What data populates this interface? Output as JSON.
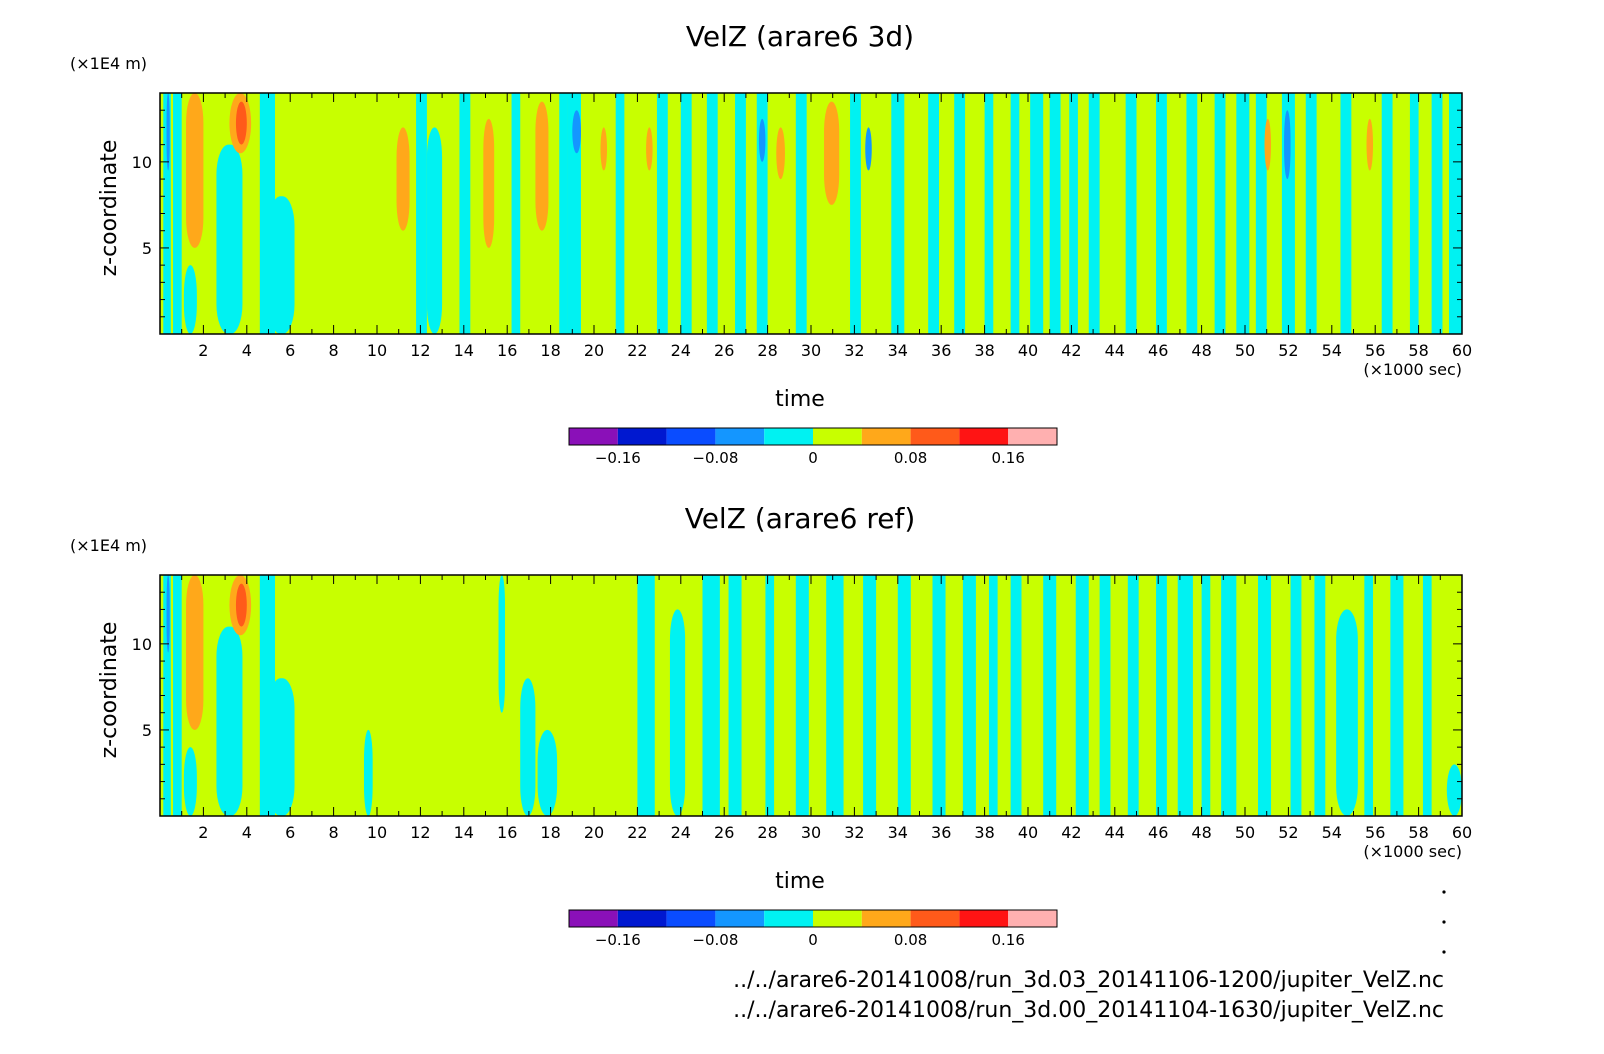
{
  "panels": [
    {
      "title": "VelZ (arare6 3d)",
      "xlabel": "time",
      "ylabel": "z-coordinate",
      "x_unit": "(×1000 sec)",
      "y_unit": "(×1E4 m)"
    },
    {
      "title": "VelZ (arare6 ref)",
      "xlabel": "time",
      "ylabel": "z-coordinate",
      "x_unit": "(×1000 sec)",
      "y_unit": "(×1E4 m)"
    }
  ],
  "colorbar": {
    "levels": [
      -0.2,
      -0.16,
      -0.12,
      -0.08,
      -0.04,
      0,
      0.04,
      0.08,
      0.12,
      0.16,
      0.2
    ],
    "colors": [
      "#8a10b8",
      "#0018d0",
      "#0a4cff",
      "#1496ff",
      "#00f2f2",
      "#c8ff00",
      "#ffa81a",
      "#ff5a1a",
      "#ff1414",
      "#ffb0b0"
    ],
    "tick_values": [
      -0.16,
      -0.08,
      0,
      0.08,
      0.16
    ],
    "tick_labels": [
      "−0.16",
      "−0.08",
      "0",
      "0.08",
      "0.16"
    ]
  },
  "file_paths": [
    "../../arare6-20141008/run_3d.03_20141106-1200/jupiter_VelZ.nc",
    "../../arare6-20141008/run_3d.00_20141104-1630/jupiter_VelZ.nc"
  ],
  "chart_data": [
    {
      "type": "heatmap",
      "title": "VelZ (arare6 3d)",
      "xlabel": "time",
      "ylabel": "z-coordinate",
      "x_unit": "(×1000 sec)",
      "y_unit": "(×1E4 m)",
      "xlim": [
        0,
        60
      ],
      "ylim": [
        0,
        14
      ],
      "xticks": [
        2,
        4,
        6,
        8,
        10,
        12,
        14,
        16,
        18,
        20,
        22,
        24,
        26,
        28,
        30,
        32,
        34,
        36,
        38,
        40,
        42,
        44,
        46,
        48,
        50,
        52,
        54,
        56,
        58,
        60
      ],
      "yticks": [
        5,
        10
      ],
      "background_level": 0,
      "bands": [
        {
          "x0": 0.15,
          "x1": 0.5,
          "level": -1
        },
        {
          "x0": 0.3,
          "x1": 0.45,
          "level": -2,
          "y0": 9.5,
          "y1": 14
        },
        {
          "x0": 0.6,
          "x1": 1.0,
          "level": -1
        },
        {
          "x0": 1.1,
          "x1": 1.7,
          "level": -1,
          "y0": 0,
          "y1": 4
        },
        {
          "x0": 1.2,
          "x1": 2.0,
          "level": 1,
          "y0": 5,
          "y1": 14
        },
        {
          "x0": 2.6,
          "x1": 3.8,
          "level": -1,
          "y0": 0,
          "y1": 11
        },
        {
          "x0": 3.2,
          "x1": 4.2,
          "level": 1,
          "y0": 10.5,
          "y1": 14
        },
        {
          "x0": 3.5,
          "x1": 4.0,
          "level": 2,
          "y0": 11,
          "y1": 13.5
        },
        {
          "x0": 4.6,
          "x1": 5.3,
          "level": -1
        },
        {
          "x0": 5.0,
          "x1": 6.2,
          "level": -1,
          "y0": 0,
          "y1": 8
        },
        {
          "x0": 10.9,
          "x1": 11.5,
          "level": 1,
          "y0": 6,
          "y1": 12
        },
        {
          "x0": 11.8,
          "x1": 12.3,
          "level": -1
        },
        {
          "x0": 12.3,
          "x1": 13.0,
          "level": -1,
          "y0": 0,
          "y1": 12
        },
        {
          "x0": 13.8,
          "x1": 14.3,
          "level": -1
        },
        {
          "x0": 14.9,
          "x1": 15.4,
          "level": 1,
          "y0": 5,
          "y1": 12.5
        },
        {
          "x0": 16.2,
          "x1": 16.6,
          "level": -1
        },
        {
          "x0": 17.3,
          "x1": 17.9,
          "level": 1,
          "y0": 6,
          "y1": 13.5
        },
        {
          "x0": 18.4,
          "x1": 18.8,
          "level": -1
        },
        {
          "x0": 18.8,
          "x1": 19.4,
          "level": -1
        },
        {
          "x0": 19.0,
          "x1": 19.4,
          "level": -2,
          "y0": 10.5,
          "y1": 13
        },
        {
          "x0": 20.3,
          "x1": 20.6,
          "level": 1,
          "y0": 9.5,
          "y1": 12
        },
        {
          "x0": 21.0,
          "x1": 21.4,
          "level": -1
        },
        {
          "x0": 22.4,
          "x1": 22.7,
          "level": 1,
          "y0": 9.5,
          "y1": 12
        },
        {
          "x0": 22.9,
          "x1": 23.4,
          "level": -1
        },
        {
          "x0": 24.0,
          "x1": 24.5,
          "level": -1
        },
        {
          "x0": 25.2,
          "x1": 25.7,
          "level": -1
        },
        {
          "x0": 26.5,
          "x1": 27.0,
          "level": -1
        },
        {
          "x0": 27.5,
          "x1": 28.0,
          "level": -1
        },
        {
          "x0": 27.6,
          "x1": 27.9,
          "level": -2,
          "y0": 10,
          "y1": 12.5
        },
        {
          "x0": 28.4,
          "x1": 28.8,
          "level": 1,
          "y0": 9,
          "y1": 12
        },
        {
          "x0": 29.3,
          "x1": 29.8,
          "level": -1
        },
        {
          "x0": 30.6,
          "x1": 31.3,
          "level": 1,
          "y0": 7.5,
          "y1": 13.5
        },
        {
          "x0": 31.8,
          "x1": 32.3,
          "level": -1
        },
        {
          "x0": 32.5,
          "x1": 32.8,
          "level": -2,
          "y0": 9.5,
          "y1": 12
        },
        {
          "x0": 33.7,
          "x1": 34.3,
          "level": -1
        },
        {
          "x0": 35.4,
          "x1": 35.9,
          "level": -1
        },
        {
          "x0": 36.6,
          "x1": 37.1,
          "level": -1
        },
        {
          "x0": 38.0,
          "x1": 38.4,
          "level": -1
        },
        {
          "x0": 39.2,
          "x1": 39.6,
          "level": -1
        },
        {
          "x0": 40.1,
          "x1": 40.7,
          "level": -1
        },
        {
          "x0": 41.0,
          "x1": 41.5,
          "level": -1
        },
        {
          "x0": 41.9,
          "x1": 42.3,
          "level": -1
        },
        {
          "x0": 42.8,
          "x1": 43.3,
          "level": -1
        },
        {
          "x0": 44.5,
          "x1": 45.0,
          "level": -1
        },
        {
          "x0": 45.9,
          "x1": 46.4,
          "level": -1
        },
        {
          "x0": 47.3,
          "x1": 47.8,
          "level": -1
        },
        {
          "x0": 48.6,
          "x1": 49.1,
          "level": -1
        },
        {
          "x0": 49.6,
          "x1": 50.2,
          "level": -1
        },
        {
          "x0": 50.5,
          "x1": 51.0,
          "level": -1
        },
        {
          "x0": 50.9,
          "x1": 51.2,
          "level": 1,
          "y0": 9.5,
          "y1": 12.5
        },
        {
          "x0": 51.7,
          "x1": 52.3,
          "level": -1
        },
        {
          "x0": 51.8,
          "x1": 52.1,
          "level": -2,
          "y0": 9,
          "y1": 13
        },
        {
          "x0": 52.8,
          "x1": 53.3,
          "level": -1
        },
        {
          "x0": 54.4,
          "x1": 54.9,
          "level": -1
        },
        {
          "x0": 55.6,
          "x1": 55.9,
          "level": 1,
          "y0": 9.5,
          "y1": 12.5
        },
        {
          "x0": 56.3,
          "x1": 56.8,
          "level": -1
        },
        {
          "x0": 57.6,
          "x1": 58.0,
          "level": -1
        },
        {
          "x0": 58.6,
          "x1": 59.1,
          "level": -1
        },
        {
          "x0": 59.4,
          "x1": 60.0,
          "level": -1
        }
      ]
    },
    {
      "type": "heatmap",
      "title": "VelZ (arare6 ref)",
      "xlabel": "time",
      "ylabel": "z-coordinate",
      "x_unit": "(×1000 sec)",
      "y_unit": "(×1E4 m)",
      "xlim": [
        0,
        60
      ],
      "ylim": [
        0,
        14
      ],
      "xticks": [
        2,
        4,
        6,
        8,
        10,
        12,
        14,
        16,
        18,
        20,
        22,
        24,
        26,
        28,
        30,
        32,
        34,
        36,
        38,
        40,
        42,
        44,
        46,
        48,
        50,
        52,
        54,
        56,
        58,
        60
      ],
      "yticks": [
        5,
        10
      ],
      "background_level": 0,
      "bands": [
        {
          "x0": 0.15,
          "x1": 0.5,
          "level": -1
        },
        {
          "x0": 0.3,
          "x1": 0.45,
          "level": -2,
          "y0": 9.5,
          "y1": 14
        },
        {
          "x0": 0.6,
          "x1": 1.0,
          "level": -1
        },
        {
          "x0": 1.1,
          "x1": 1.7,
          "level": -1,
          "y0": 0,
          "y1": 4
        },
        {
          "x0": 1.2,
          "x1": 2.0,
          "level": 1,
          "y0": 5,
          "y1": 14
        },
        {
          "x0": 2.6,
          "x1": 3.8,
          "level": -1,
          "y0": 0,
          "y1": 11
        },
        {
          "x0": 3.2,
          "x1": 4.2,
          "level": 1,
          "y0": 10.5,
          "y1": 14
        },
        {
          "x0": 3.5,
          "x1": 4.0,
          "level": 2,
          "y0": 11,
          "y1": 13.5
        },
        {
          "x0": 4.6,
          "x1": 5.3,
          "level": -1
        },
        {
          "x0": 5.0,
          "x1": 6.2,
          "level": -1,
          "y0": 0,
          "y1": 8
        },
        {
          "x0": 9.4,
          "x1": 9.8,
          "level": -1,
          "y0": 0,
          "y1": 5
        },
        {
          "x0": 15.6,
          "x1": 15.9,
          "level": -1,
          "y0": 6,
          "y1": 14
        },
        {
          "x0": 16.6,
          "x1": 17.3,
          "level": -1,
          "y0": 0,
          "y1": 8
        },
        {
          "x0": 17.4,
          "x1": 18.3,
          "level": -1,
          "y0": 0,
          "y1": 5
        },
        {
          "x0": 22.0,
          "x1": 22.8,
          "level": -1
        },
        {
          "x0": 23.5,
          "x1": 24.2,
          "level": -1,
          "y0": 0,
          "y1": 12
        },
        {
          "x0": 25.0,
          "x1": 25.8,
          "level": -1
        },
        {
          "x0": 26.2,
          "x1": 26.8,
          "level": -1
        },
        {
          "x0": 27.9,
          "x1": 28.3,
          "level": -1
        },
        {
          "x0": 29.3,
          "x1": 29.9,
          "level": -1
        },
        {
          "x0": 30.7,
          "x1": 31.5,
          "level": -1
        },
        {
          "x0": 32.4,
          "x1": 33.0,
          "level": -1
        },
        {
          "x0": 34.0,
          "x1": 34.6,
          "level": -1
        },
        {
          "x0": 35.6,
          "x1": 36.2,
          "level": -1
        },
        {
          "x0": 37.0,
          "x1": 37.6,
          "level": -1
        },
        {
          "x0": 38.2,
          "x1": 38.6,
          "level": -1
        },
        {
          "x0": 39.2,
          "x1": 39.7,
          "level": -1
        },
        {
          "x0": 40.7,
          "x1": 41.3,
          "level": -1
        },
        {
          "x0": 42.2,
          "x1": 42.8,
          "level": -1
        },
        {
          "x0": 43.3,
          "x1": 43.8,
          "level": -1
        },
        {
          "x0": 44.6,
          "x1": 45.1,
          "level": -1
        },
        {
          "x0": 45.9,
          "x1": 46.4,
          "level": -1
        },
        {
          "x0": 46.9,
          "x1": 47.6,
          "level": -1
        },
        {
          "x0": 48.0,
          "x1": 48.4,
          "level": -1
        },
        {
          "x0": 48.9,
          "x1": 49.6,
          "level": -1
        },
        {
          "x0": 50.6,
          "x1": 51.2,
          "level": -1
        },
        {
          "x0": 52.1,
          "x1": 52.6,
          "level": -1
        },
        {
          "x0": 53.2,
          "x1": 53.7,
          "level": -1
        },
        {
          "x0": 54.2,
          "x1": 55.2,
          "level": -1,
          "y0": 0,
          "y1": 12
        },
        {
          "x0": 55.5,
          "x1": 55.9,
          "level": -1
        },
        {
          "x0": 56.7,
          "x1": 57.3,
          "level": -1
        },
        {
          "x0": 58.2,
          "x1": 58.6,
          "level": -1
        },
        {
          "x0": 59.3,
          "x1": 60.0,
          "level": -1,
          "y0": 0,
          "y1": 3
        }
      ]
    }
  ]
}
